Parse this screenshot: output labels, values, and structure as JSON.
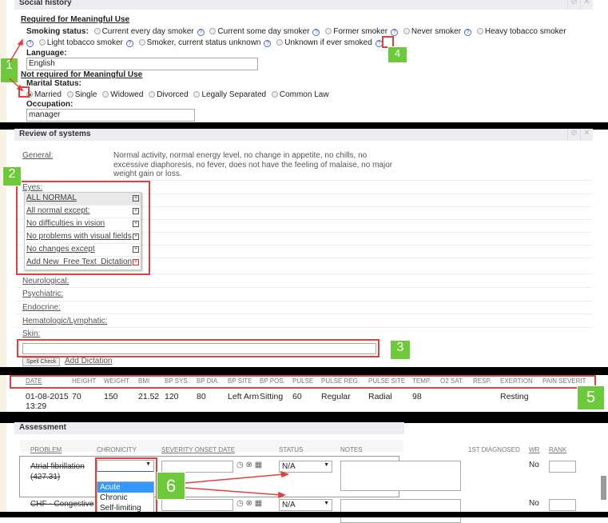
{
  "social_history": {
    "title": "Social history",
    "required_heading": "Required for Meaningful Use",
    "smoking_label": "Smoking status:",
    "smoking_options": [
      "Current every day smoker",
      "Current some day smoker",
      "Former smoker",
      "Never smoker",
      "Heavy tobacco smoker",
      "Light tobacco smoker",
      "Smoker, current status unknown",
      "Unknown if ever smoked"
    ],
    "language_label": "Language:",
    "language_value": "English",
    "not_required_heading": "Not required for Meaningful Use",
    "marital_label": "Marital Status:",
    "marital_options": [
      "Married",
      "Single",
      "Widowed",
      "Divorced",
      "Legally Separated",
      "Common Law"
    ],
    "marital_selected": "Married",
    "occupation_label": "Occupation:",
    "occupation_value": "manager"
  },
  "review_of_systems": {
    "title": "Review of systems",
    "general_label": "General:",
    "general_text": "Normal activity, normal energy level, no change in appetite, no chills, no excessive diaphoresis, no fever, does not have the feeling of malaise, no major weight gain or loss.",
    "eyes_label": "Eyes:",
    "popup_items": [
      "ALL NORMAL",
      "All normal except:",
      "No difficulties in vision",
      "No problems with visual fields",
      "No changes except"
    ],
    "popup_actions": [
      "Add New",
      "Free Text",
      "Dictation"
    ],
    "systems": [
      "Neurological:",
      "Psychiatric:",
      "Endocrine:",
      "Hematologic/Lymphatic:",
      "Skin:"
    ],
    "spell_check": "Spell Check",
    "add_dictation": "Add Dictation"
  },
  "vitals": {
    "headers": [
      "DATE",
      "HEIGHT",
      "WEIGHT",
      "BMI",
      "BP SYS.",
      "BP DIA.",
      "BP SITE",
      "BP POS.",
      "PULSE",
      "PULSE REG.",
      "PULSE SITE",
      "TEMP.",
      "O2 SAT.",
      "RESP.",
      "EXERTION",
      "PAIN SEVERIT"
    ],
    "row": [
      "01-08-2015 13:29",
      "70",
      "150",
      "21.52",
      "120",
      "80",
      "Left Arm",
      "Sitting",
      "60",
      "Regular",
      "Radial",
      "98",
      "",
      "",
      "Resting",
      ""
    ]
  },
  "assessment": {
    "title": "Assessment",
    "headers": [
      "PROBLEM",
      "CHRONICITY",
      "SEVERITY ONSET DATE",
      "STATUS",
      "NOTES",
      "1ST DIAGNOSED",
      "WR",
      "RANK"
    ],
    "rows": [
      {
        "problem": "Atrial fibrillation (427.31)",
        "status": "N/A",
        "wr": "No"
      },
      {
        "problem": "CHF - Congestive",
        "status": "N/A",
        "wr": "No"
      }
    ],
    "chronicity_options": [
      "Acute",
      "Chronic",
      "Self-limiting"
    ],
    "chronicity_highlighted": "Acute"
  },
  "badges": [
    "1",
    "2",
    "3",
    "4",
    "5",
    "6"
  ],
  "colors": {
    "callout_red": "#e0413b",
    "badge_green": "#6cc93a",
    "panel_header": "#ededf1",
    "highlight": "#3399ff"
  }
}
